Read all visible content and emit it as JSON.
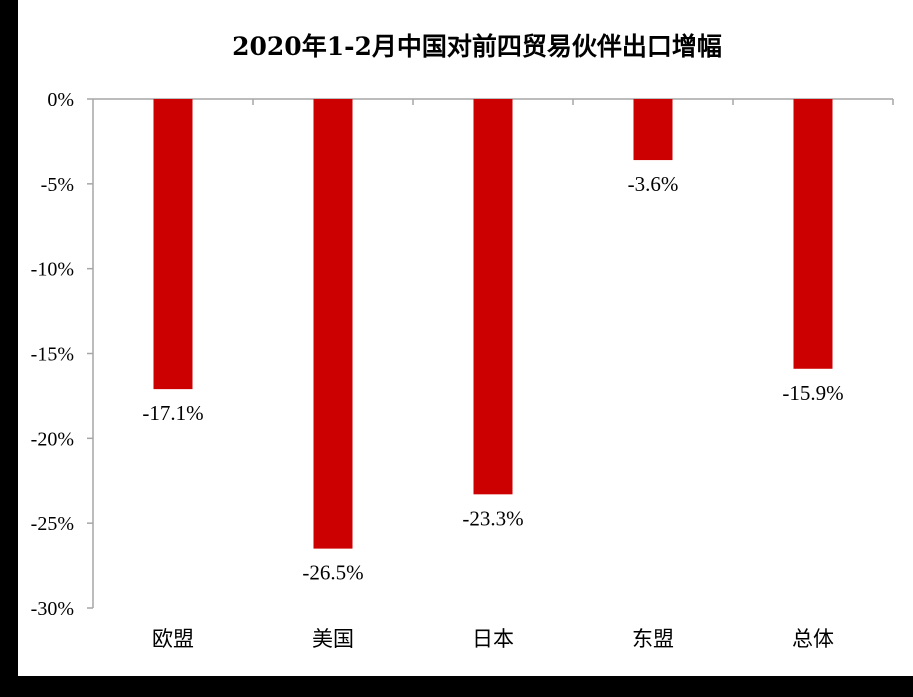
{
  "chart_data": {
    "type": "bar",
    "title": "2020年1-2月中国对前四贸易伙伴出口增幅",
    "xlabel": "",
    "ylabel": "",
    "categories": [
      "欧盟",
      "美国",
      "日本",
      "东盟",
      "总体"
    ],
    "values": [
      -17.1,
      -26.5,
      -23.3,
      -3.6,
      -15.9
    ],
    "value_labels": [
      "-17.1%",
      "-26.5%",
      "-23.3%",
      "-3.6%",
      "-15.9%"
    ],
    "ylim": [
      -30,
      0
    ],
    "yticks": [
      0,
      -5,
      -10,
      -15,
      -20,
      -25,
      -30
    ],
    "ytick_labels": [
      "0%",
      "-5%",
      "-10%",
      "-15%",
      "-20%",
      "-25%",
      "-30%"
    ],
    "grid": false,
    "legend": "none",
    "colors": {
      "bar": "#cc0000",
      "axis": "#a6a6a6",
      "background": "#ffffff",
      "frame": "#000000"
    }
  }
}
